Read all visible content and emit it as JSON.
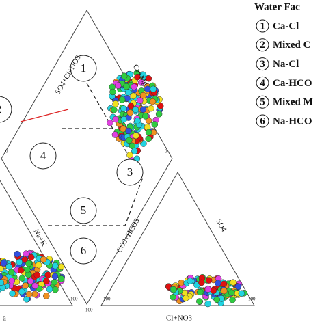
{
  "legend": {
    "title": "Water Fac",
    "items": [
      {
        "number": "1",
        "label": "Ca-Cl"
      },
      {
        "number": "2",
        "label": "Mixed C"
      },
      {
        "number": "3",
        "label": "Na-Cl"
      },
      {
        "number": "4",
        "label": "Ca-HCO"
      },
      {
        "number": "5",
        "label": "Mixed M"
      },
      {
        "number": "6",
        "label": "Na-HCO"
      }
    ]
  },
  "zones": [
    {
      "number": "1"
    },
    {
      "number": "2"
    },
    {
      "number": "3"
    },
    {
      "number": "4"
    },
    {
      "number": "5"
    },
    {
      "number": "6"
    }
  ],
  "axes": {
    "diamond_upper_left": "SO4+Cl+NO3",
    "diamond_upper_right": "Ca+Mg",
    "diamond_lower_left": "Na+K",
    "diamond_lower_right": "CO3+HCO3",
    "right_triangle_side": "SO4",
    "right_triangle_base": "Cl+NO3",
    "left_triangle_base": "a"
  },
  "ticks": {
    "zero": "0",
    "hundred": "100"
  }
}
